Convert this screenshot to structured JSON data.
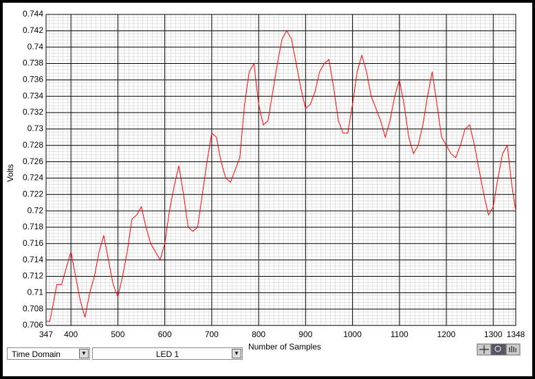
{
  "chart_data": {
    "type": "line",
    "y_label": "Volts",
    "x_label": "Number of Samples",
    "display_mode": "Time Domain",
    "channel": "LED 1",
    "color": "#ff0000",
    "grid": true,
    "x": [
      347,
      355,
      360,
      370,
      380,
      390,
      400,
      410,
      420,
      430,
      440,
      450,
      460,
      470,
      480,
      490,
      500,
      510,
      520,
      530,
      540,
      550,
      560,
      570,
      580,
      590,
      600,
      610,
      620,
      630,
      640,
      650,
      660,
      670,
      680,
      690,
      700,
      710,
      720,
      730,
      740,
      750,
      760,
      770,
      780,
      790,
      800,
      810,
      820,
      830,
      840,
      850,
      860,
      870,
      880,
      890,
      900,
      910,
      920,
      930,
      940,
      950,
      960,
      970,
      980,
      990,
      1000,
      1010,
      1020,
      1030,
      1040,
      1050,
      1060,
      1070,
      1080,
      1090,
      1100,
      1110,
      1120,
      1130,
      1140,
      1150,
      1160,
      1170,
      1180,
      1190,
      1200,
      1210,
      1220,
      1230,
      1240,
      1250,
      1260,
      1270,
      1280,
      1290,
      1300,
      1310,
      1320,
      1330,
      1340,
      1348
    ],
    "values": [
      0.7065,
      0.7065,
      0.708,
      0.711,
      0.711,
      0.713,
      0.715,
      0.712,
      0.709,
      0.707,
      0.71,
      0.712,
      0.715,
      0.717,
      0.714,
      0.711,
      0.7095,
      0.712,
      0.715,
      0.719,
      0.7195,
      0.7205,
      0.718,
      0.716,
      0.715,
      0.714,
      0.716,
      0.72,
      0.723,
      0.7255,
      0.722,
      0.718,
      0.7175,
      0.718,
      0.722,
      0.726,
      0.7295,
      0.729,
      0.726,
      0.724,
      0.7235,
      0.725,
      0.7265,
      0.733,
      0.737,
      0.738,
      0.733,
      0.7305,
      0.731,
      0.7345,
      0.738,
      0.741,
      0.742,
      0.741,
      0.738,
      0.735,
      0.7325,
      0.733,
      0.7345,
      0.737,
      0.738,
      0.7385,
      0.735,
      0.731,
      0.7295,
      0.7295,
      0.733,
      0.737,
      0.739,
      0.737,
      0.734,
      0.7325,
      0.731,
      0.729,
      0.731,
      0.734,
      0.736,
      0.733,
      0.729,
      0.727,
      0.728,
      0.7305,
      0.734,
      0.737,
      0.733,
      0.729,
      0.728,
      0.727,
      0.7265,
      0.728,
      0.73,
      0.7305,
      0.728,
      0.725,
      0.722,
      0.7195,
      0.7205,
      0.724,
      0.727,
      0.728,
      0.723,
      0.72
    ],
    "xlim": [
      347,
      1348
    ],
    "xticks": [
      347,
      400,
      500,
      600,
      700,
      800,
      900,
      1000,
      1100,
      1200,
      1300,
      1348
    ],
    "ylim": [
      0.706,
      0.744
    ],
    "yticks": [
      0.706,
      0.708,
      0.71,
      0.712,
      0.714,
      0.716,
      0.718,
      0.72,
      0.722,
      0.724,
      0.726,
      0.728,
      0.73,
      0.732,
      0.734,
      0.736,
      0.738,
      0.74,
      0.742,
      0.744
    ]
  }
}
